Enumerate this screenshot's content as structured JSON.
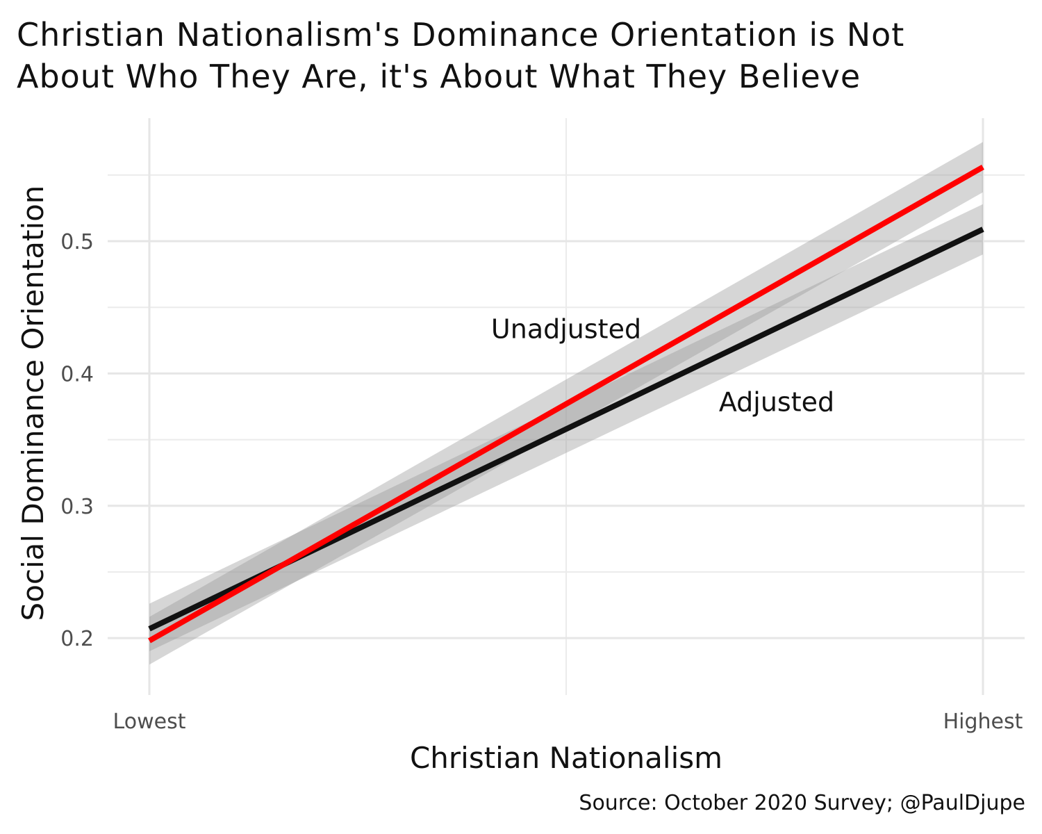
{
  "chart_data": {
    "type": "line",
    "title": [
      "Christian Nationalism's Dominance Orientation is Not",
      "About Who They Are, it's About What They Believe"
    ],
    "xlabel": "Christian Nationalism",
    "ylabel": "Social Dominance Orientation",
    "caption": "Source: October 2020 Survey; @PaulDjupe",
    "xlim": [
      -0.05,
      1.05
    ],
    "ylim": [
      0.157,
      0.593
    ],
    "x_ticks": [
      {
        "value": 0,
        "label": "Lowest"
      },
      {
        "value": 1,
        "label": "Highest"
      }
    ],
    "x_minor": [
      0.5
    ],
    "y_ticks": [
      {
        "value": 0.2,
        "label": "0.2"
      },
      {
        "value": 0.3,
        "label": "0.3"
      },
      {
        "value": 0.4,
        "label": "0.4"
      },
      {
        "value": 0.5,
        "label": "0.5"
      }
    ],
    "y_minor": [
      0.25,
      0.35,
      0.45,
      0.55
    ],
    "grid": true,
    "series": [
      {
        "name": "Adjusted",
        "color": "#111111",
        "x": [
          0,
          1
        ],
        "y": [
          0.207,
          0.509
        ],
        "ci_low": [
          0.19,
          0.49
        ],
        "ci_high": [
          0.226,
          0.528
        ]
      },
      {
        "name": "Unadjusted",
        "color": "#ff0000",
        "x": [
          0,
          1
        ],
        "y": [
          0.198,
          0.556
        ],
        "ci_low": [
          0.18,
          0.537
        ],
        "ci_high": [
          0.216,
          0.575
        ]
      }
    ],
    "annotations": [
      {
        "text": "Unadjusted",
        "x": 0.5,
        "y": 0.434
      },
      {
        "text": "Adjusted",
        "x": 0.7525,
        "y": 0.379
      }
    ]
  }
}
